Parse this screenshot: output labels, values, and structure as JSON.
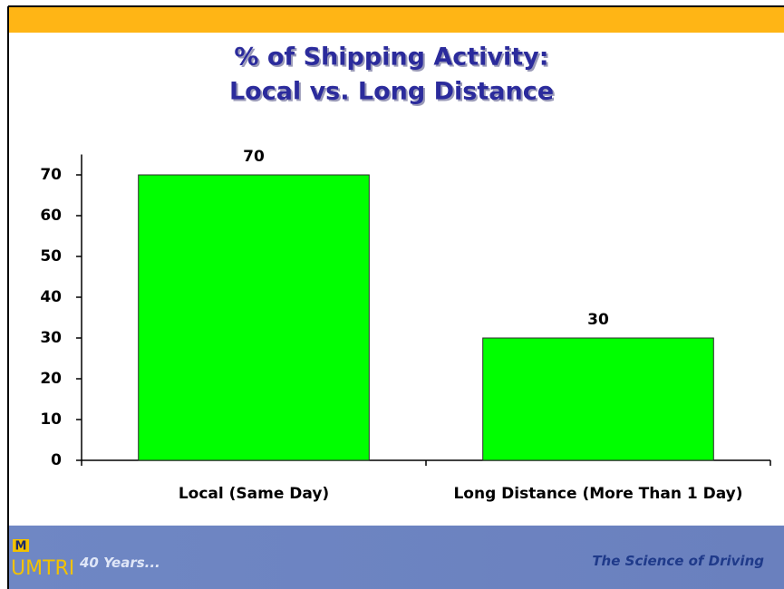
{
  "chart_data": {
    "type": "bar",
    "title": "% of Shipping Activity:",
    "subtitle": "Local vs. Long Distance",
    "categories": [
      "Local (Same Day)",
      "Long Distance (More Than 1 Day)"
    ],
    "values": [
      70,
      30
    ],
    "color": "#00ff00",
    "ylim": [
      0,
      75
    ],
    "yticks": [
      0,
      10,
      20,
      30,
      40,
      50,
      60,
      70
    ]
  },
  "footer": {
    "logo_letter": "M",
    "logo": "UMTRI",
    "tagline_left": "40 Years...",
    "tagline_right": "The Science of Driving"
  }
}
